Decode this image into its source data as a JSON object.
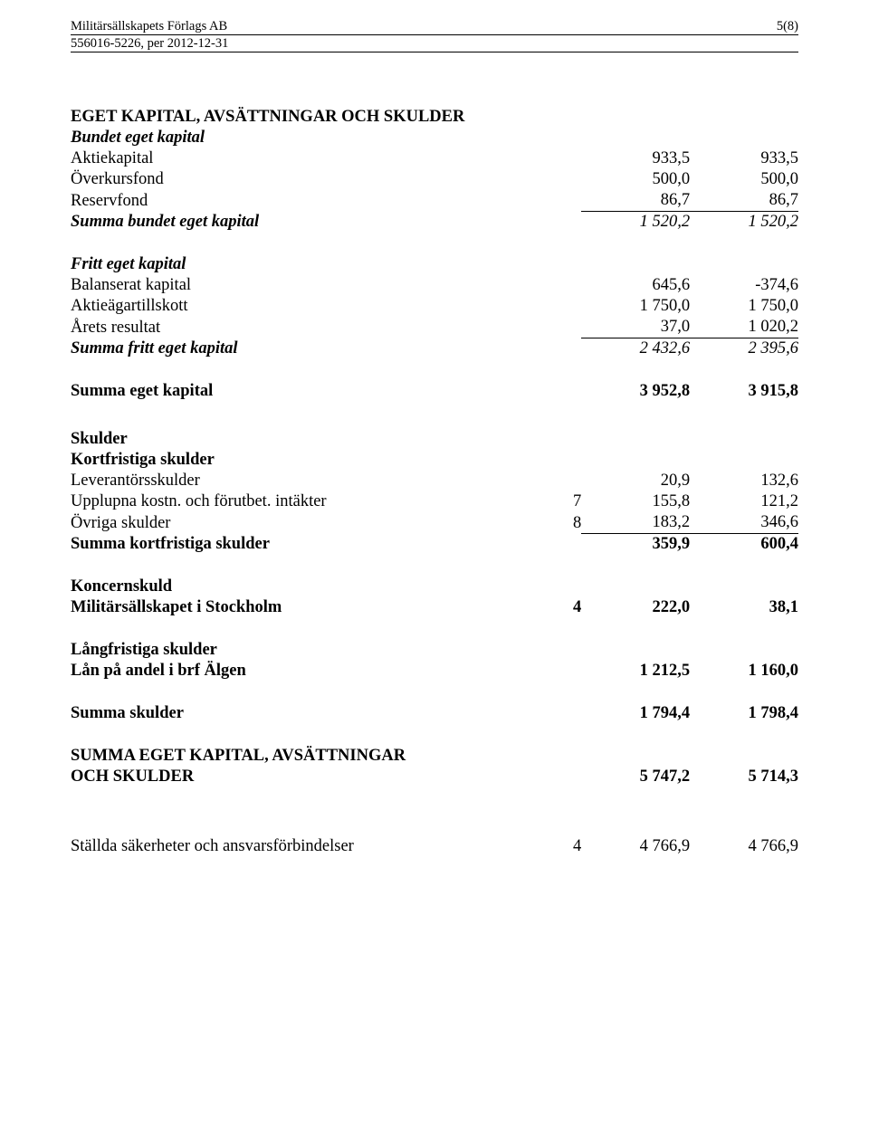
{
  "header": {
    "company": "Militärsällskapets Förlags AB",
    "page_no": "5(8)",
    "subline": "556016-5226, per 2012-12-31"
  },
  "section_title": "EGET KAPITAL, AVSÄTTNINGAR OCH SKULDER",
  "groups": {
    "bundet": {
      "title": "Bundet eget kapital",
      "rows": [
        {
          "label": "Aktiekapital",
          "v1": "933,5",
          "v2": "933,5"
        },
        {
          "label": "Överkursfond",
          "v1": "500,0",
          "v2": "500,0"
        },
        {
          "label": "Reservfond",
          "v1": "86,7",
          "v2": "86,7"
        }
      ],
      "sum": {
        "label": "Summa bundet eget kapital",
        "v1": "1 520,2",
        "v2": "1 520,2"
      }
    },
    "fritt": {
      "title": "Fritt eget kapital",
      "rows": [
        {
          "label": "Balanserat kapital",
          "v1": "645,6",
          "v2": "-374,6"
        },
        {
          "label": "Aktieägartillskott",
          "v1": "1 750,0",
          "v2": "1 750,0"
        },
        {
          "label": "Årets resultat",
          "v1": "37,0",
          "v2": "1 020,2"
        }
      ],
      "sum": {
        "label": "Summa fritt eget kapital",
        "v1": "2 432,6",
        "v2": "2 395,6"
      }
    },
    "summa_eget": {
      "label": "Summa eget kapital",
      "v1": "3 952,8",
      "v2": "3 915,8"
    },
    "skulder_title": "Skulder",
    "kortfr": {
      "title": "Kortfristiga skulder",
      "rows": [
        {
          "label": "Leverantörsskulder",
          "note": "",
          "v1": "20,9",
          "v2": "132,6"
        },
        {
          "label": "Upplupna kostn. och förutbet. intäkter",
          "note": "7",
          "v1": "155,8",
          "v2": "121,2"
        },
        {
          "label": "Övriga skulder",
          "note": "8",
          "v1": "183,2",
          "v2": "346,6"
        }
      ],
      "sum": {
        "label": "Summa kortfristiga skulder",
        "v1": "359,9",
        "v2": "600,4"
      }
    },
    "koncern": {
      "title": "Koncernskuld",
      "row": {
        "label": "Militärsällskapet i Stockholm",
        "note": "4",
        "v1": "222,0",
        "v2": "38,1"
      }
    },
    "langfr": {
      "title": "Långfristiga skulder",
      "row": {
        "label": "Lån på andel i brf Älgen",
        "v1": "1 212,5",
        "v2": "1 160,0"
      }
    },
    "summa_sk": {
      "label": "Summa skulder",
      "v1": "1 794,4",
      "v2": "1 798,4"
    },
    "grand": {
      "line1": "SUMMA EGET KAPITAL, AVSÄTTNINGAR",
      "line2": "OCH SKULDER",
      "v1": "5 747,2",
      "v2": "5 714,3"
    },
    "stallda": {
      "label": "Ställda säkerheter och ansvarsförbindelser",
      "note": "4",
      "v1": "4 766,9",
      "v2": "4 766,9"
    }
  }
}
